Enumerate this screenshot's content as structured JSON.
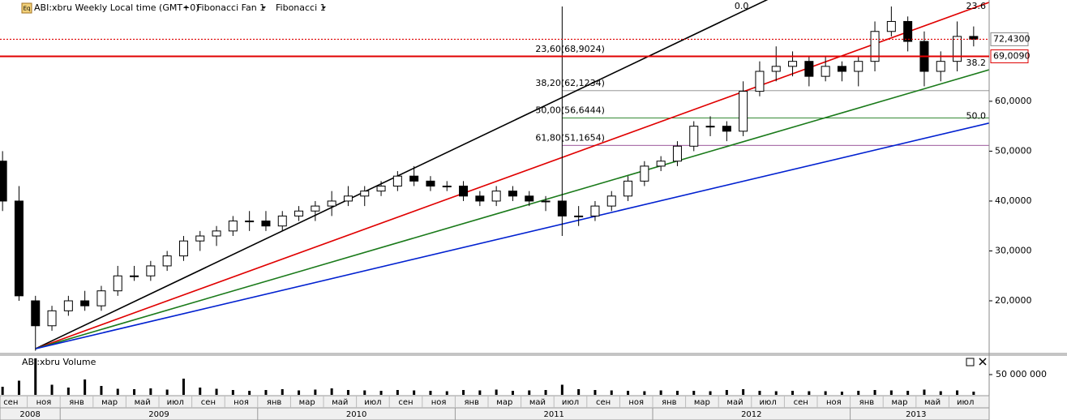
{
  "header": {
    "icon": "Eq",
    "symbol": "ABI:xbru Weekly Local time (GMT+0)",
    "tools": [
      "Fibonacci Fan 1",
      "Fibonacci 1"
    ]
  },
  "chart_data": [
    {
      "type": "candlestick",
      "x": [
        "2008-09",
        "2008-10",
        "2008-11",
        "2008-12",
        "2009-01",
        "2009-02",
        "2009-03",
        "2009-04",
        "2009-05",
        "2009-06",
        "2009-07",
        "2009-08",
        "2009-09",
        "2009-10",
        "2009-11",
        "2009-12",
        "2010-01",
        "2010-02",
        "2010-03",
        "2010-04",
        "2010-05",
        "2010-06",
        "2010-07",
        "2010-08",
        "2010-09",
        "2010-10",
        "2010-11",
        "2010-12",
        "2011-01",
        "2011-02",
        "2011-03",
        "2011-04",
        "2011-05",
        "2011-06",
        "2011-07",
        "2011-08",
        "2011-09",
        "2011-10",
        "2011-11",
        "2011-12",
        "2012-01",
        "2012-02",
        "2012-03",
        "2012-04",
        "2012-05",
        "2012-06",
        "2012-07",
        "2012-08",
        "2012-09",
        "2012-10",
        "2012-11",
        "2012-12",
        "2013-01",
        "2013-02",
        "2013-03",
        "2013-04",
        "2013-05",
        "2013-06",
        "2013-07",
        "2013-08"
      ],
      "open": [
        48,
        40,
        20,
        15,
        18,
        20,
        19,
        22,
        25,
        25,
        27,
        29,
        32,
        33,
        34,
        36,
        36,
        35,
        37,
        38,
        39,
        40,
        41,
        42,
        43,
        45,
        44,
        43,
        43,
        41,
        40,
        42,
        41,
        40,
        40,
        37,
        37,
        39,
        41,
        44,
        47,
        48,
        51,
        55,
        55,
        54,
        62,
        66,
        67,
        68,
        65,
        67,
        66,
        68,
        74,
        76,
        72,
        66,
        68,
        73
      ],
      "high": [
        50,
        43,
        21,
        19,
        21,
        22,
        23,
        27,
        27,
        28,
        30,
        33,
        34,
        35,
        37,
        38,
        38,
        38,
        39,
        40,
        42,
        43,
        43,
        44,
        46,
        47,
        45,
        44,
        44,
        42,
        43,
        43,
        42,
        41,
        79,
        39,
        40,
        42,
        45,
        48,
        49,
        52,
        56,
        57,
        56,
        64,
        68,
        71,
        70,
        69,
        69,
        68,
        69,
        76,
        79,
        77,
        74,
        70,
        76,
        75
      ],
      "low": [
        38,
        20,
        10,
        14,
        17,
        18,
        18,
        21,
        24,
        24,
        26,
        28,
        30,
        31,
        33,
        34,
        34,
        34,
        36,
        36,
        37,
        39,
        39,
        41,
        42,
        43,
        42,
        42,
        40,
        39,
        39,
        40,
        39,
        38,
        33,
        35,
        36,
        38,
        40,
        43,
        46,
        47,
        50,
        53,
        52,
        53,
        61,
        64,
        65,
        63,
        64,
        64,
        63,
        66,
        73,
        70,
        63,
        64,
        66,
        71
      ],
      "close": [
        40,
        21,
        15,
        18,
        20,
        19,
        22,
        25,
        25,
        27,
        29,
        32,
        33,
        34,
        36,
        36,
        35,
        37,
        38,
        39,
        40,
        41,
        42,
        43,
        45,
        44,
        43,
        43,
        41,
        40,
        42,
        41,
        40,
        40,
        37,
        37,
        39,
        41,
        44,
        47,
        48,
        51,
        55,
        55,
        54,
        62,
        66,
        67,
        68,
        65,
        67,
        66,
        68,
        74,
        76,
        72,
        66,
        68,
        73,
        72.43
      ],
      "ylim": [
        9.6,
        80.3
      ],
      "yticks": [
        {
          "value": 20,
          "label": "20,0000"
        },
        {
          "value": 30,
          "label": "30,0000"
        },
        {
          "value": 40,
          "label": "40,0000"
        },
        {
          "value": 50,
          "label": "50,0000"
        },
        {
          "value": 60,
          "label": "60,0000"
        }
      ],
      "price_lines": [
        {
          "value": 72.43,
          "label": "72,4300",
          "style": "dotted",
          "color": "#e00000",
          "label_color": "#000000"
        },
        {
          "value": 69.009,
          "label": "69,0090",
          "style": "solid",
          "color": "#e00000",
          "label_color": "#e00000"
        }
      ],
      "fan": {
        "anchor_x": "2008-11",
        "anchor_price": 10.4,
        "end_x": "2013-08",
        "rays": [
          {
            "label": "0.0",
            "color": "#000000",
            "end_price": 100.1
          },
          {
            "label": "23.6",
            "color": "#e00000",
            "end_price": 78.7
          },
          {
            "label": "38.2",
            "color": "#1a7a1a",
            "end_price": 65.4
          },
          {
            "label": "50.0",
            "color": "#0020d0",
            "end_price": 54.9
          }
        ]
      },
      "retracement": {
        "start_x": "2011-07",
        "levels": [
          {
            "label": "23,60(68,9024)",
            "price": 68.9024,
            "color": "#c8a8a8"
          },
          {
            "label": "38,20(62,1234)",
            "price": 62.1234,
            "color": "#000000"
          },
          {
            "label": "50,00(56,6444)",
            "price": 56.6444,
            "color": "#1a7a1a"
          },
          {
            "label": "61,80(51,1654)",
            "price": 51.1654,
            "color": "#7a207a"
          }
        ]
      },
      "x_axis": {
        "months": [
          "сен",
          "ноя",
          "янв",
          "мар",
          "май",
          "июл",
          "сен",
          "ноя",
          "янв",
          "мар",
          "май",
          "июл",
          "сен",
          "ноя",
          "янв",
          "мар",
          "май",
          "июл",
          "сен",
          "ноя",
          "янв",
          "мар",
          "май",
          "июл",
          "сен",
          "ноя",
          "янв",
          "мар",
          "май",
          "июл"
        ],
        "years": [
          "2008",
          "2009",
          "2010",
          "2011",
          "2012",
          "2013"
        ]
      }
    },
    {
      "type": "bar",
      "title": "ABI:xbru Volume",
      "color": "#000000",
      "values": [
        20000000,
        35000000,
        90000000,
        25000000,
        18000000,
        38000000,
        22000000,
        15000000,
        14000000,
        16000000,
        13000000,
        40000000,
        18000000,
        15000000,
        12000000,
        10000000,
        12000000,
        14000000,
        11000000,
        13000000,
        16000000,
        12000000,
        11000000,
        10000000,
        12000000,
        11000000,
        10000000,
        9000000,
        12000000,
        11000000,
        13000000,
        10000000,
        11000000,
        12000000,
        25000000,
        14000000,
        12000000,
        11000000,
        10000000,
        9000000,
        11000000,
        10000000,
        10000000,
        9000000,
        12000000,
        14000000,
        10000000,
        9000000,
        10000000,
        9000000,
        9000000,
        8000000,
        10000000,
        12000000,
        11000000,
        10000000,
        13000000,
        9000000,
        11000000,
        8000000
      ],
      "ylim": [
        0,
        98000000
      ],
      "yticks": [
        {
          "value": 50000000,
          "label": "50 000 000"
        }
      ]
    }
  ]
}
